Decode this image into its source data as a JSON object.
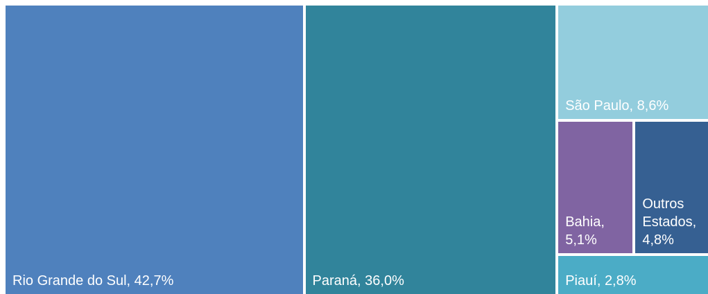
{
  "chart_data": {
    "type": "treemap",
    "categories": [
      "Rio Grande do Sul",
      "Paraná",
      "São Paulo",
      "Bahia",
      "Outros Estados",
      "Piauí"
    ],
    "values": [
      42.7,
      36.0,
      8.6,
      5.1,
      4.8,
      2.8
    ],
    "value_labels": [
      "42,7%",
      "36,0%",
      "8,6%",
      "5,1%",
      "4,8%",
      "2,8%"
    ],
    "colors": [
      "#4f81bd",
      "#31849b",
      "#93cddd",
      "#8064a2",
      "#366092",
      "#4bacc6"
    ]
  }
}
